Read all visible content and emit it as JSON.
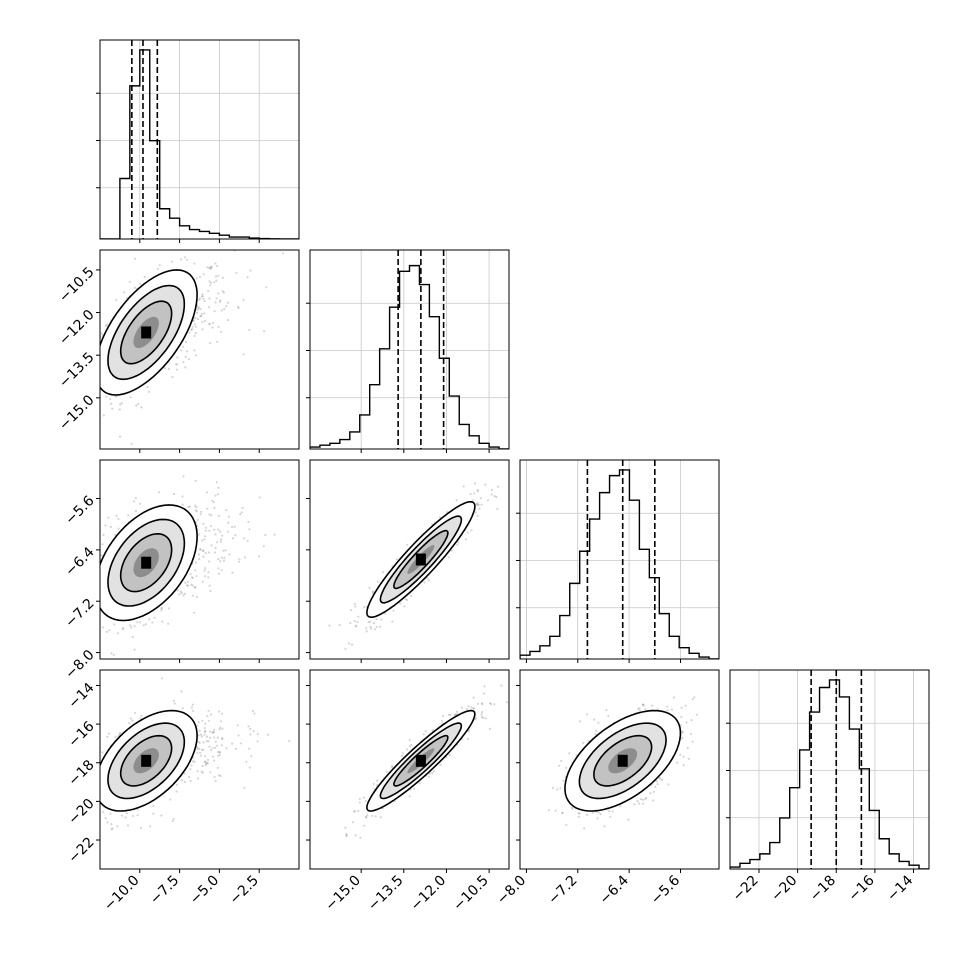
{
  "chart_data": {
    "type": "corner",
    "parameters": [
      {
        "ticks": [
          -10.0,
          -7.5,
          -5.0,
          -2.5
        ],
        "tick_labels": [
          "−10.0",
          "−7.5",
          "−5.0",
          "−2.5"
        ],
        "range": [
          -12.5,
          0.0
        ],
        "quantiles": [
          -10.5,
          -9.8,
          -8.9
        ],
        "hist": [
          0.0,
          0.0,
          0.32,
          0.81,
          1.0,
          0.52,
          0.16,
          0.11,
          0.07,
          0.05,
          0.04,
          0.03,
          0.02,
          0.01,
          0.01,
          0.005,
          0.002,
          0.001,
          0.0,
          0.0
        ],
        "grid": [
          -10.0,
          -7.5,
          -5.0,
          -2.5
        ]
      },
      {
        "ticks": [
          -15.0,
          -13.5,
          -12.0,
          -10.5
        ],
        "tick_labels": [
          "−15.0",
          "−13.5",
          "−12.0",
          "−10.5"
        ],
        "range": [
          -16.8,
          -9.8
        ],
        "quantiles": [
          -13.7,
          -12.9,
          -12.1
        ],
        "hist": [
          0.01,
          0.02,
          0.03,
          0.05,
          0.09,
          0.18,
          0.34,
          0.53,
          0.75,
          0.94,
          0.97,
          0.87,
          0.7,
          0.48,
          0.28,
          0.13,
          0.07,
          0.03,
          0.01,
          0.0
        ],
        "grid": [
          -15.0,
          -13.5,
          -12.0,
          -10.5
        ]
      },
      {
        "ticks": [
          -8.0,
          -7.2,
          -6.4,
          -5.6
        ],
        "tick_labels": [
          "−8.0",
          "−7.2",
          "−6.4",
          "−5.6"
        ],
        "range": [
          -8.1,
          -5.0
        ],
        "quantiles": [
          -7.05,
          -6.5,
          -6.0
        ],
        "hist": [
          0.02,
          0.04,
          0.07,
          0.12,
          0.23,
          0.4,
          0.57,
          0.74,
          0.88,
          0.97,
          1.0,
          0.84,
          0.58,
          0.43,
          0.24,
          0.12,
          0.06,
          0.03,
          0.01,
          0.0
        ],
        "grid": [
          -8.0,
          -7.2,
          -6.4,
          -5.6
        ]
      },
      {
        "ticks": [
          -22,
          -20,
          -18,
          -16,
          -14
        ],
        "tick_labels": [
          "−22",
          "−20",
          "−18",
          "−16",
          "−14"
        ],
        "range": [
          -23.5,
          -13.2
        ],
        "quantiles": [
          -19.3,
          -18.0,
          -16.7
        ],
        "hist": [
          0.01,
          0.03,
          0.05,
          0.08,
          0.14,
          0.27,
          0.43,
          0.63,
          0.83,
          0.96,
          1.0,
          0.91,
          0.74,
          0.53,
          0.31,
          0.16,
          0.08,
          0.04,
          0.02,
          0.0
        ],
        "grid": [
          -22,
          -20,
          -18,
          -16,
          -14
        ]
      }
    ],
    "pairs": [
      {
        "row": 1,
        "col": 0,
        "mean": [
          -9.6,
          -12.7
        ],
        "sd": [
          1.6,
          1.1
        ],
        "corr": 0.6
      },
      {
        "row": 2,
        "col": 0,
        "mean": [
          -9.6,
          -6.6
        ],
        "sd": [
          1.6,
          0.45
        ],
        "corr": 0.45
      },
      {
        "row": 2,
        "col": 1,
        "mean": [
          -12.9,
          -6.55
        ],
        "sd": [
          0.95,
          0.45
        ],
        "corr": 0.92
      },
      {
        "row": 3,
        "col": 0,
        "mean": [
          -9.6,
          -17.9
        ],
        "sd": [
          1.6,
          1.3
        ],
        "corr": 0.5
      },
      {
        "row": 3,
        "col": 1,
        "mean": [
          -12.9,
          -17.9
        ],
        "sd": [
          0.95,
          1.3
        ],
        "corr": 0.93
      },
      {
        "row": 3,
        "col": 2,
        "mean": [
          -6.5,
          -17.9
        ],
        "sd": [
          0.45,
          1.3
        ],
        "corr": 0.55
      }
    ],
    "contour_levels_sigma": [
      0.5,
      1.0,
      1.5,
      2.0
    ],
    "xlabel": "",
    "ylabel": "",
    "title": "",
    "grid": true
  }
}
